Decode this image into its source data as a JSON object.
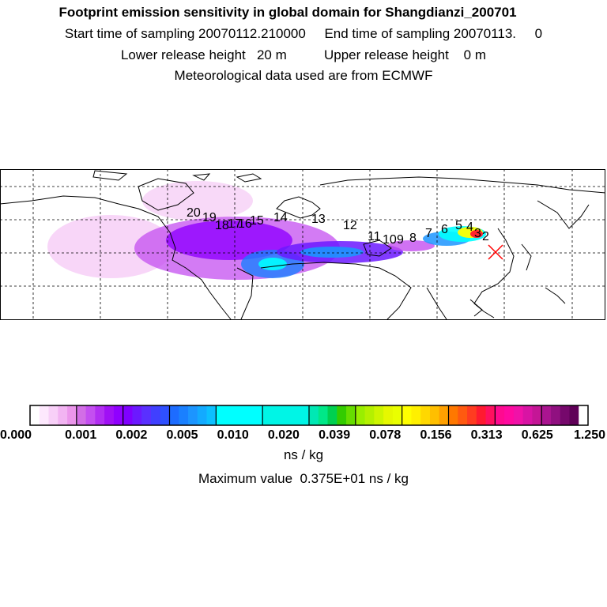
{
  "header": {
    "title": "Footprint emission sensitivity in global domain for Shangdianzi_200701",
    "sampling_line": "Start time of sampling 20070112.210000     End time of sampling 20070113.     0",
    "release_line": "Lower release height   20 m          Upper release height    0 m",
    "met_line": "Meteorological data used are from ECMWF"
  },
  "map": {
    "trajectory_labels": [
      "20",
      "19",
      "18",
      "17",
      "16",
      "15",
      "14",
      "13",
      "12",
      "11",
      "10",
      "9",
      "8",
      "7",
      "6",
      "5",
      "4",
      "3",
      "2"
    ],
    "receptor": "Shangdianzi",
    "colors": {
      "coast": "#000000",
      "grid": "#000000",
      "receptor_marker": "#ff0000"
    }
  },
  "colorbar": {
    "tick_labels": [
      "0.000",
      "0.001",
      "0.002",
      "0.005",
      "0.010",
      "0.020",
      "0.039",
      "0.078",
      "0.156",
      "0.313",
      "0.625",
      "1.250"
    ],
    "colors": [
      "#ffffff",
      "#fde8fd",
      "#f8d0f8",
      "#f2b4f2",
      "#eb96eb",
      "#d26ee6",
      "#c44ff0",
      "#b22ef2",
      "#a010f5",
      "#9000ff",
      "#7f00ff",
      "#6b19ff",
      "#5a30ff",
      "#4040ff",
      "#2f50ff",
      "#1d6cff",
      "#1a80ff",
      "#1c95ff",
      "#13aaff",
      "#0cc0ff",
      "#00ffff",
      "#00f5e6",
      "#00e8b4",
      "#00e888",
      "#00d050",
      "#33cc00",
      "#66dd00",
      "#99ee00",
      "#b4f000",
      "#cdf500",
      "#e6f800",
      "#eaff00",
      "#ffff00",
      "#fff000",
      "#ffd800",
      "#ffbf00",
      "#ffa000",
      "#ff7800",
      "#ff5a10",
      "#ff3c20",
      "#ff1a30",
      "#ff1060",
      "#ff0a90",
      "#ff0aa0",
      "#f012a8",
      "#d814a4",
      "#c41696",
      "#aa1490",
      "#901080",
      "#76086c",
      "#600058"
    ],
    "groups": [
      5,
      5,
      5,
      5,
      1,
      1,
      5,
      5,
      5,
      5,
      5,
      5
    ]
  },
  "units": "ns / kg",
  "max_value_line": "Maximum value  0.375E+01 ns / kg"
}
